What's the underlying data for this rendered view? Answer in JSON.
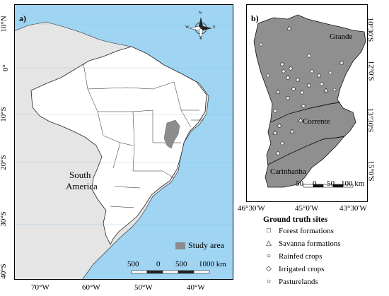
{
  "panel_a": {
    "label": "a)",
    "continent_label_1": "South",
    "continent_label_2": "America",
    "study_area_label": "Study area",
    "colors": {
      "ocean": "#9fd4f3",
      "land_outside": "#e5e5e5",
      "brazil": "#ffffff",
      "study_area": "#8c8c8c",
      "border": "#222222"
    },
    "lat_ticks": [
      "10°N",
      "0°",
      "10°S",
      "20°S",
      "30°S",
      "40°S"
    ],
    "lon_ticks": [
      "70°W",
      "60°W",
      "50°W",
      "40°W"
    ],
    "scale_bar": {
      "labels": [
        "500",
        "0",
        "500",
        "1000 km"
      ]
    },
    "compass": {
      "n": "N",
      "s": "S",
      "e": "E",
      "w": "W"
    }
  },
  "panel_b": {
    "label": "b)",
    "basin_labels": [
      "Grande",
      "Corrente",
      "Carinhanha"
    ],
    "colors": {
      "basin": "#8f8f8f",
      "marker": "#ffffff",
      "border": "#111111"
    },
    "lat_ticks": [
      "10°30'S",
      "12°0'S",
      "13°30'S",
      "15°0'S"
    ],
    "lon_ticks": [
      "46°30'W",
      "45°0'W",
      "43°30'W"
    ],
    "scale_bar": {
      "labels": [
        "50",
        "0",
        "50",
        "100 km"
      ]
    }
  },
  "legend": {
    "title": "Ground truth sites",
    "items": [
      {
        "symbol": "square",
        "glyph": "□",
        "label": "Forest formations"
      },
      {
        "symbol": "triangle",
        "glyph": "△",
        "label": "Savanna formations"
      },
      {
        "symbol": "circle",
        "glyph": "○",
        "label": "Rainfed crops"
      },
      {
        "symbol": "diamond",
        "glyph": "◇",
        "label": "Irrigated crops"
      },
      {
        "symbol": "circle",
        "glyph": "○",
        "label": "Pasturelands"
      }
    ]
  }
}
